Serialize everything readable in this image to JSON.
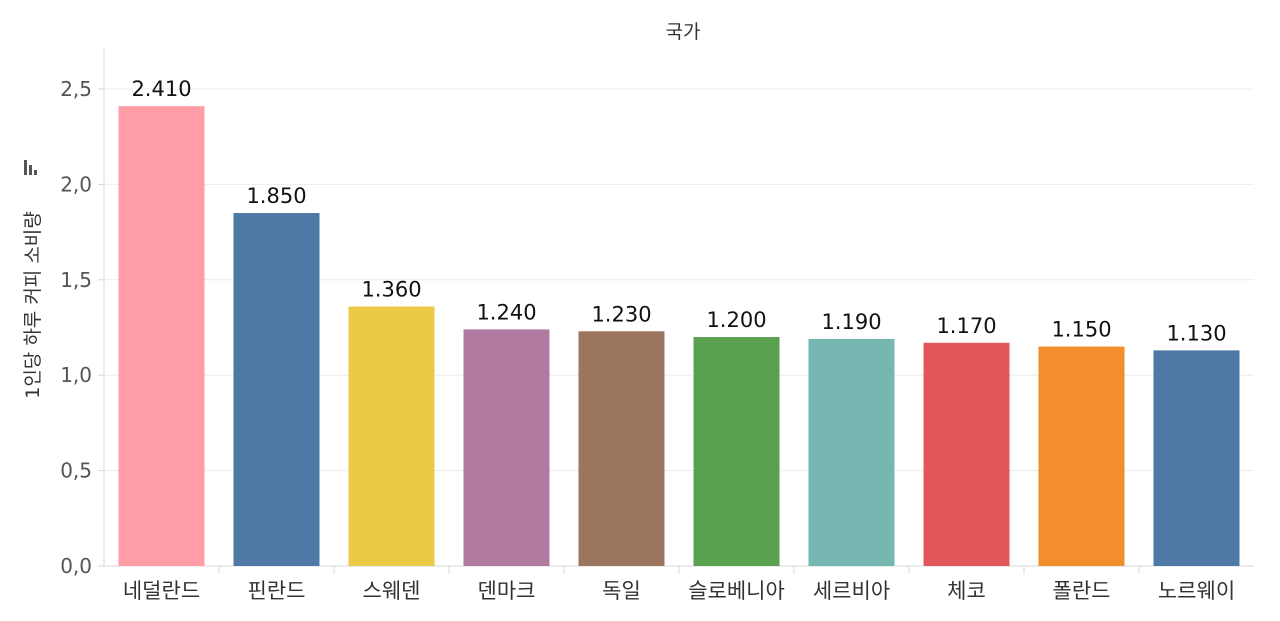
{
  "chart_data": {
    "type": "bar",
    "header": "국가",
    "ylabel": "1인당 하루 커피 소비량",
    "ylim": [
      0,
      2.6
    ],
    "yticks": [
      "0,0",
      "0,5",
      "1,0",
      "1,5",
      "2,0",
      "2,5"
    ],
    "ytick_values": [
      0,
      0.5,
      1.0,
      1.5,
      2.0,
      2.5
    ],
    "grid": true,
    "legend": "none",
    "categories": [
      "네덜란드",
      "핀란드",
      "스웨덴",
      "덴마크",
      "독일",
      "슬로베니아",
      "세르비아",
      "체코",
      "폴란드",
      "노르웨이"
    ],
    "values": [
      2.41,
      1.85,
      1.36,
      1.24,
      1.23,
      1.2,
      1.19,
      1.17,
      1.15,
      1.13
    ],
    "value_labels": [
      "2.410",
      "1.850",
      "1.360",
      "1.240",
      "1.230",
      "1.200",
      "1.190",
      "1.170",
      "1.150",
      "1.130"
    ],
    "colors": [
      "#ff9da7",
      "#4e79a7",
      "#edc948",
      "#b07aa1",
      "#9c755f",
      "#59a14f",
      "#76b7b2",
      "#e15759",
      "#f28e2b",
      "#4e79a7"
    ],
    "sort_icon": "sort-descending-icon"
  }
}
